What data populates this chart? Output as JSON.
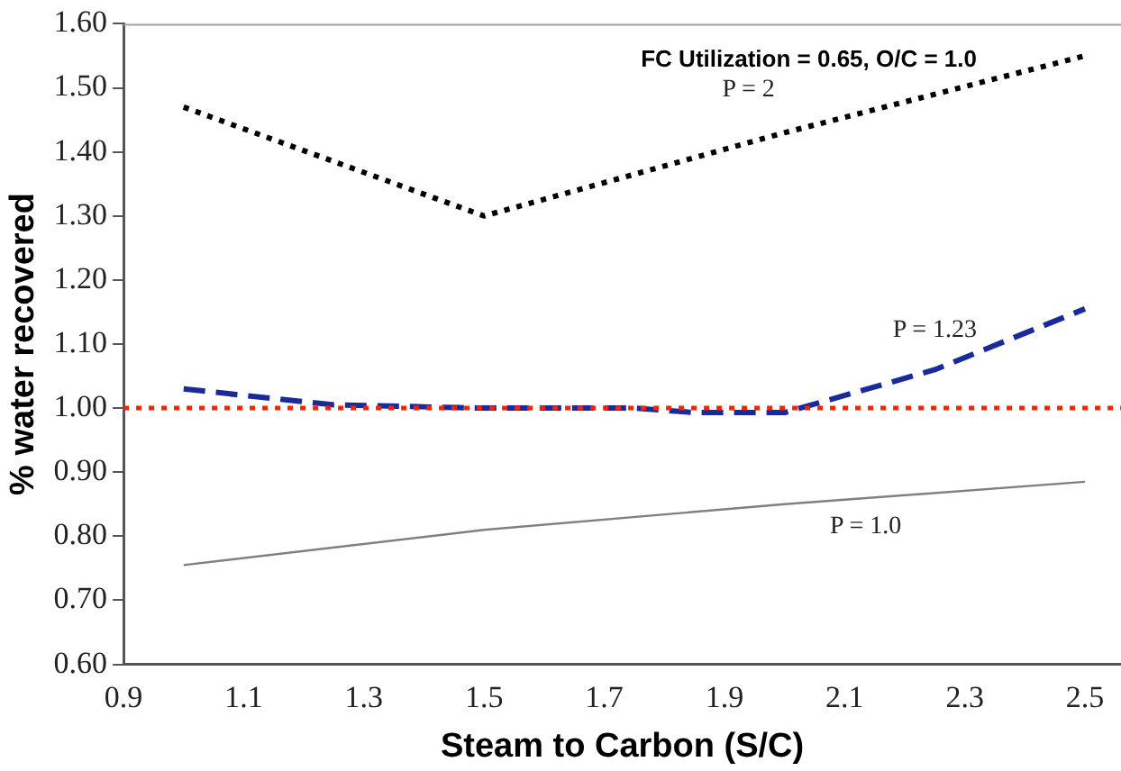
{
  "chart_data": {
    "type": "line",
    "xlabel": "Steam to Carbon (S/C)",
    "ylabel": "% water recovered",
    "annotations": [
      "FC Utilization = 0.65, O/C = 1.0"
    ],
    "xlim": [
      0.9,
      2.56
    ],
    "xticks": [
      0.9,
      1.1,
      1.3,
      1.5,
      1.7,
      1.9,
      2.1,
      2.3,
      2.5
    ],
    "ylim": [
      0.6,
      1.6
    ],
    "yticks": [
      {
        "value": 0.6,
        "label": "0.60"
      },
      {
        "value": 0.7,
        "label": "0.70"
      },
      {
        "value": 0.8,
        "label": "0.80"
      },
      {
        "value": 0.9,
        "label": "0.90"
      },
      {
        "value": 1.0,
        "label": "1.00"
      },
      {
        "value": 1.1,
        "label": "1.10"
      },
      {
        "value": 1.2,
        "label": "1.20"
      },
      {
        "value": 1.3,
        "label": "1.30"
      },
      {
        "value": 1.4,
        "label": "1.40"
      },
      {
        "value": 1.5,
        "label": "1.50"
      },
      {
        "value": 1.6,
        "label": "1.60"
      }
    ],
    "grid": false,
    "legend": false,
    "marker": "none",
    "ref_lines": [
      {
        "axis": "y",
        "value": 1.0,
        "color": "#ff2000",
        "line_style": "dotted"
      }
    ],
    "series": [
      {
        "name": "P = 2",
        "color": "#000000",
        "line_style": "dotted",
        "x": [
          1.0,
          1.5,
          2.0,
          2.5
        ],
        "values": [
          1.47,
          1.3,
          1.43,
          1.55
        ]
      },
      {
        "name": "P = 1.23",
        "color": "#1a2a9a",
        "line_style": "dashed",
        "x": [
          1.0,
          1.25,
          1.5,
          1.75,
          1.85,
          2.0,
          2.25,
          2.5
        ],
        "values": [
          1.03,
          1.005,
          1.0,
          1.0,
          0.993,
          0.993,
          1.06,
          1.155
        ]
      },
      {
        "name": "P = 1.0",
        "color": "#808080",
        "line_style": "solid",
        "x": [
          1.0,
          1.5,
          2.0,
          2.5
        ],
        "values": [
          0.755,
          0.81,
          0.85,
          0.885
        ]
      }
    ]
  }
}
